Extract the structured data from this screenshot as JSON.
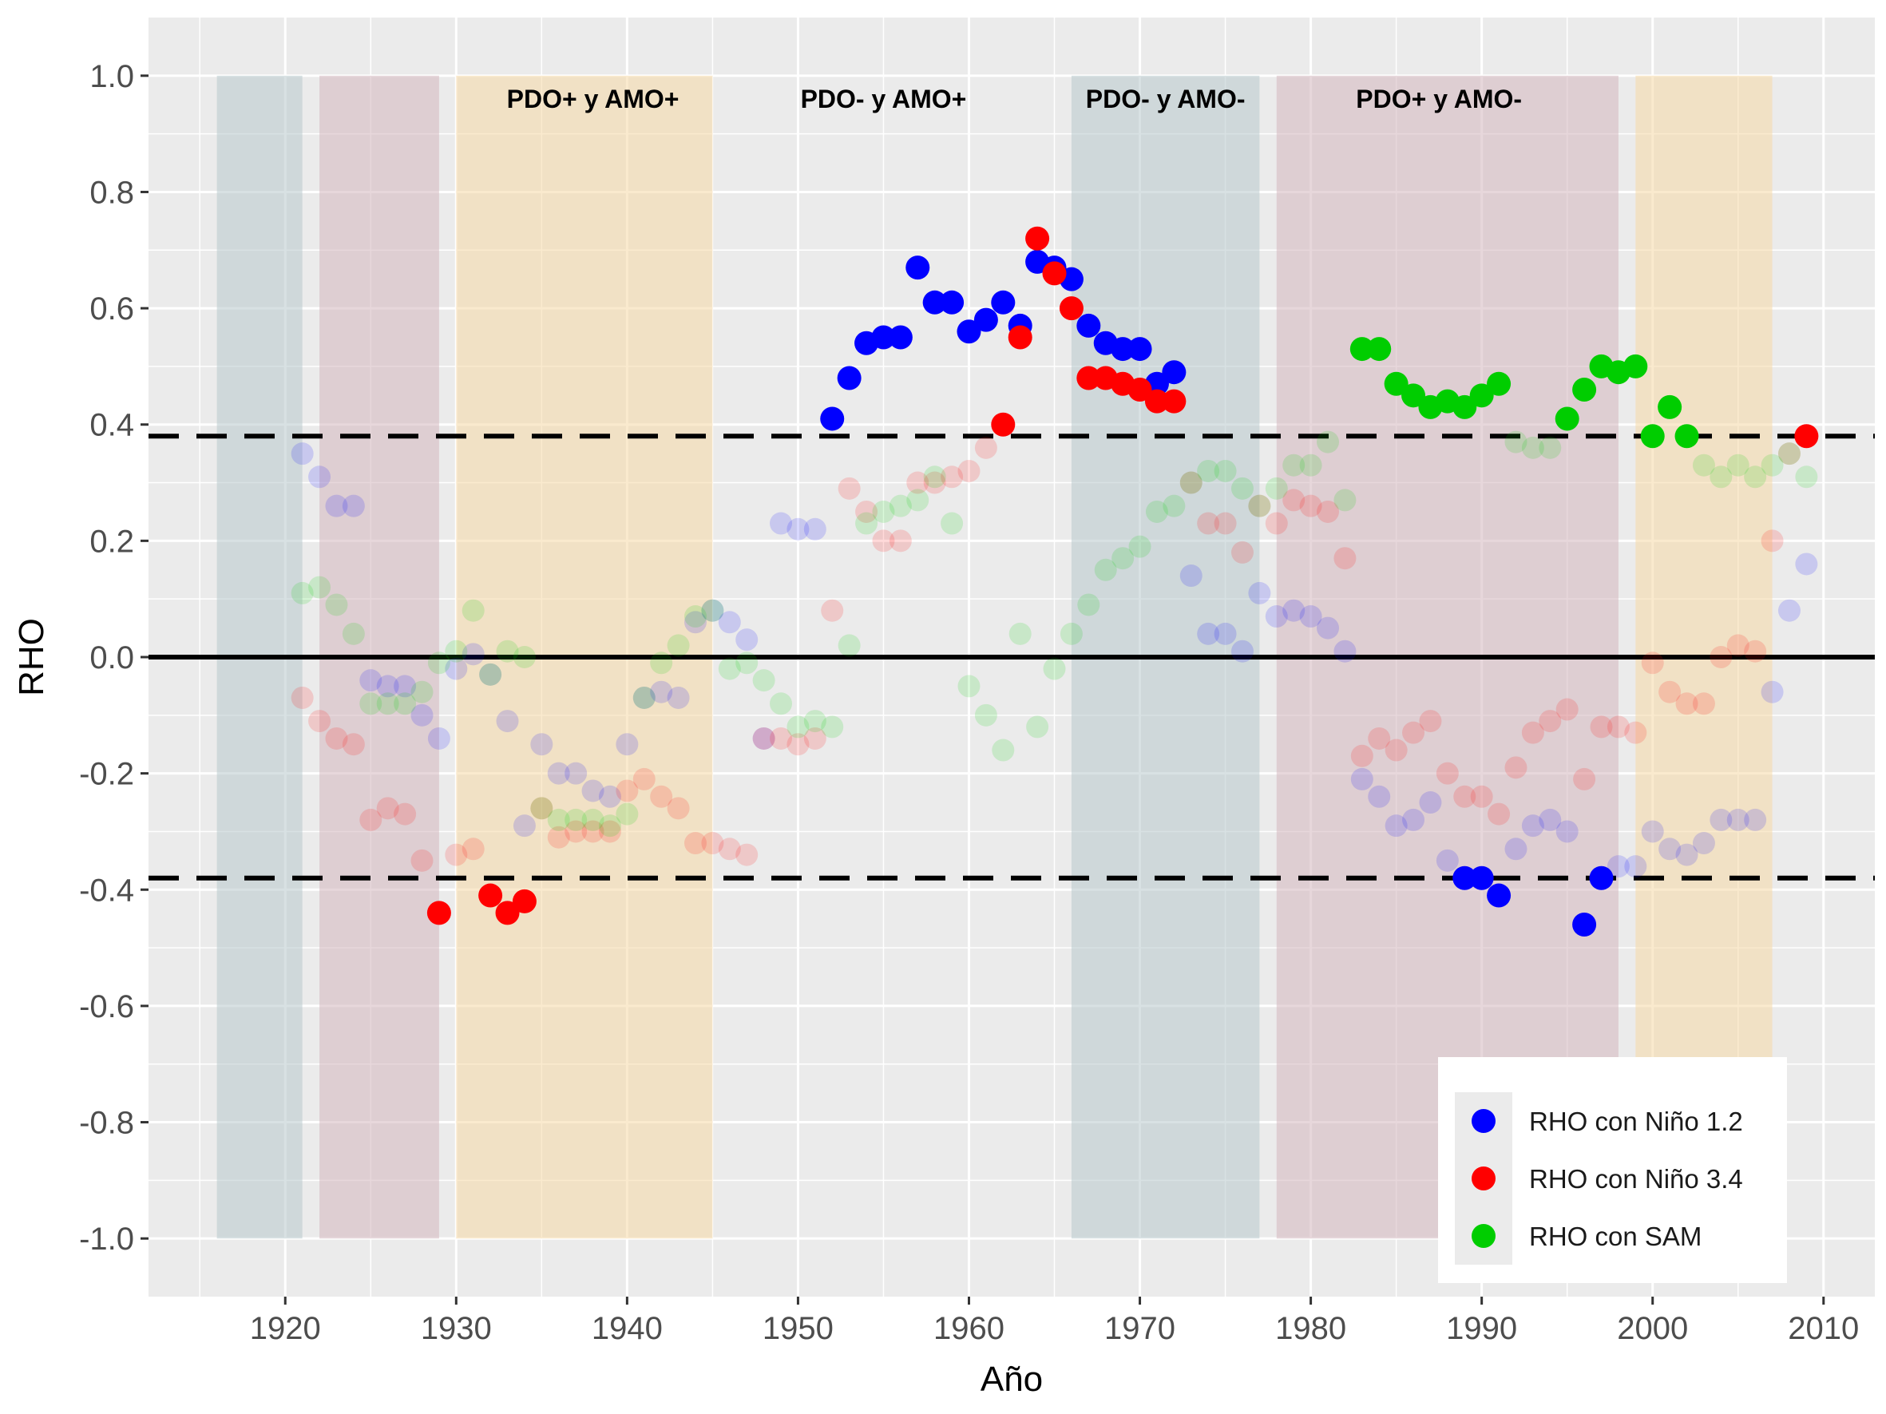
{
  "chart_data": {
    "type": "scatter",
    "xlabel": "Año",
    "ylabel": "RHO",
    "xlim": [
      1912,
      2013
    ],
    "ylim": [
      -1.1,
      1.1
    ],
    "x_ticks": [
      1920,
      1930,
      1940,
      1950,
      1960,
      1970,
      1980,
      1990,
      2000,
      2010
    ],
    "y_ticks": [
      1.0,
      0.8,
      0.6,
      0.4,
      0.2,
      0.0,
      -0.2,
      -0.4,
      -0.6,
      -0.8,
      -1.0
    ],
    "y_tick_labels": [
      "1.0",
      "0.8",
      "0.6",
      "0.4",
      "0.2",
      "0.0",
      "-0.2",
      "-0.4",
      "-0.6",
      "-0.8",
      "-1.0"
    ],
    "grid": true,
    "significance_threshold": 0.38,
    "reference_lines": [
      {
        "y": 0.0,
        "style": "solid"
      },
      {
        "y": 0.38,
        "style": "dashed"
      },
      {
        "y": -0.38,
        "style": "dashed"
      }
    ],
    "phase_bands": [
      {
        "start": 1916,
        "end": 1921,
        "color": "#b8c9cc"
      },
      {
        "start": 1922,
        "end": 1929,
        "color": "#d4b7bd"
      },
      {
        "start": 1930,
        "end": 1945,
        "color": "#f5d9a6"
      },
      {
        "start": 1966,
        "end": 1977,
        "color": "#b8c9cc"
      },
      {
        "start": 1978,
        "end": 1998,
        "color": "#d4b7bd"
      },
      {
        "start": 1999,
        "end": 2007,
        "color": "#f5d9a6"
      }
    ],
    "phase_labels": [
      {
        "text": "PDO+ y AMO+",
        "x": 1938
      },
      {
        "text": "PDO- y AMO+",
        "x": 1955
      },
      {
        "text": "PDO- y AMO-",
        "x": 1971.5
      },
      {
        "text": "PDO+ y AMO-",
        "x": 1987.5
      }
    ],
    "legend": {
      "position": "bottom-right",
      "entries": [
        {
          "label": "RHO con Niño 1.2",
          "color": "#0000ff"
        },
        {
          "label": "RHO con Niño 3.4",
          "color": "#ff0000"
        },
        {
          "label": "RHO con SAM",
          "color": "#00cd00"
        }
      ]
    },
    "series": [
      {
        "name": "RHO con Niño 1.2",
        "color": "#0000ff",
        "x": [
          1921,
          1922,
          1923,
          1924,
          1925,
          1926,
          1927,
          1928,
          1929,
          1930,
          1931,
          1932,
          1933,
          1934,
          1935,
          1936,
          1937,
          1938,
          1939,
          1940,
          1941,
          1942,
          1943,
          1944,
          1945,
          1946,
          1947,
          1948,
          1949,
          1950,
          1951,
          1952,
          1953,
          1954,
          1955,
          1956,
          1957,
          1958,
          1959,
          1960,
          1961,
          1962,
          1963,
          1964,
          1965,
          1966,
          1967,
          1968,
          1969,
          1970,
          1971,
          1972,
          1973,
          1974,
          1975,
          1976,
          1977,
          1978,
          1979,
          1980,
          1981,
          1982,
          1983,
          1984,
          1985,
          1986,
          1987,
          1988,
          1989,
          1990,
          1991,
          1992,
          1993,
          1994,
          1995,
          1996,
          1997,
          1998,
          1999,
          2000,
          2001,
          2002,
          2003,
          2004,
          2005,
          2006,
          2007,
          2008,
          2009
        ],
        "y": [
          0.35,
          0.31,
          0.26,
          0.26,
          -0.04,
          -0.05,
          -0.05,
          -0.1,
          -0.14,
          -0.02,
          0.005,
          -0.03,
          -0.11,
          -0.29,
          -0.15,
          -0.2,
          -0.2,
          -0.23,
          -0.24,
          -0.15,
          -0.07,
          -0.06,
          -0.07,
          0.06,
          0.08,
          0.06,
          0.03,
          -0.14,
          0.23,
          0.22,
          0.22,
          0.41,
          0.48,
          0.54,
          0.55,
          0.55,
          0.67,
          0.61,
          0.61,
          0.56,
          0.58,
          0.61,
          0.57,
          0.68,
          0.67,
          0.65,
          0.57,
          0.54,
          0.53,
          0.53,
          0.47,
          0.49,
          0.14,
          0.04,
          0.04,
          0.01,
          0.11,
          0.07,
          0.08,
          0.07,
          0.05,
          0.01,
          -0.21,
          -0.24,
          -0.29,
          -0.28,
          -0.25,
          -0.35,
          -0.38,
          -0.38,
          -0.41,
          -0.33,
          -0.29,
          -0.28,
          -0.3,
          -0.46,
          -0.38,
          -0.36,
          -0.36,
          -0.3,
          -0.33,
          -0.34,
          -0.32,
          -0.28,
          -0.28,
          -0.28,
          -0.06,
          0.08,
          0.16
        ]
      },
      {
        "name": "RHO con Niño 3.4",
        "color": "#ff0000",
        "x": [
          1921,
          1922,
          1923,
          1924,
          1925,
          1926,
          1927,
          1928,
          1929,
          1930,
          1931,
          1932,
          1933,
          1934,
          1935,
          1936,
          1937,
          1938,
          1939,
          1940,
          1941,
          1942,
          1943,
          1944,
          1945,
          1946,
          1947,
          1948,
          1949,
          1950,
          1951,
          1952,
          1953,
          1954,
          1955,
          1956,
          1957,
          1958,
          1959,
          1960,
          1961,
          1962,
          1963,
          1964,
          1965,
          1966,
          1967,
          1968,
          1969,
          1970,
          1971,
          1972,
          1973,
          1974,
          1975,
          1976,
          1977,
          1978,
          1979,
          1980,
          1981,
          1982,
          1983,
          1984,
          1985,
          1986,
          1987,
          1988,
          1989,
          1990,
          1991,
          1992,
          1993,
          1994,
          1995,
          1996,
          1997,
          1998,
          1999,
          2000,
          2001,
          2002,
          2003,
          2004,
          2005,
          2006,
          2007,
          2008,
          2009
        ],
        "y": [
          -0.07,
          -0.11,
          -0.14,
          -0.15,
          -0.28,
          -0.26,
          -0.27,
          -0.35,
          -0.44,
          -0.34,
          -0.33,
          -0.41,
          -0.44,
          -0.42,
          -0.26,
          -0.31,
          -0.3,
          -0.3,
          -0.3,
          -0.23,
          -0.21,
          -0.24,
          -0.26,
          -0.32,
          -0.32,
          -0.33,
          -0.34,
          -0.14,
          -0.14,
          -0.15,
          -0.14,
          0.08,
          0.29,
          0.25,
          0.2,
          0.2,
          0.3,
          0.3,
          0.31,
          0.32,
          0.36,
          0.4,
          0.55,
          0.72,
          0.66,
          0.6,
          0.48,
          0.48,
          0.47,
          0.46,
          0.44,
          0.44,
          0.3,
          0.23,
          0.23,
          0.18,
          0.26,
          0.23,
          0.27,
          0.26,
          0.25,
          0.17,
          -0.17,
          -0.14,
          -0.16,
          -0.13,
          -0.11,
          -0.2,
          -0.24,
          -0.24,
          -0.27,
          -0.19,
          -0.13,
          -0.11,
          -0.09,
          -0.21,
          -0.12,
          -0.12,
          -0.13,
          -0.01,
          -0.06,
          -0.08,
          -0.08,
          0.0,
          0.02,
          0.01,
          0.2,
          0.35,
          0.38
        ]
      },
      {
        "name": "RHO con SAM",
        "color": "#00cd00",
        "x": [
          1921,
          1922,
          1923,
          1924,
          1925,
          1926,
          1927,
          1928,
          1929,
          1930,
          1931,
          1932,
          1933,
          1934,
          1935,
          1936,
          1937,
          1938,
          1939,
          1940,
          1941,
          1942,
          1943,
          1944,
          1945,
          1946,
          1947,
          1948,
          1949,
          1950,
          1951,
          1952,
          1953,
          1954,
          1955,
          1956,
          1957,
          1958,
          1959,
          1960,
          1961,
          1962,
          1963,
          1964,
          1965,
          1966,
          1967,
          1968,
          1969,
          1970,
          1971,
          1972,
          1973,
          1974,
          1975,
          1976,
          1977,
          1978,
          1979,
          1980,
          1981,
          1982,
          1983,
          1984,
          1985,
          1986,
          1987,
          1988,
          1989,
          1990,
          1991,
          1992,
          1993,
          1994,
          1995,
          1996,
          1997,
          1998,
          1999,
          2000,
          2001,
          2002,
          2003,
          2004,
          2005,
          2006,
          2007,
          2008,
          2009
        ],
        "y": [
          0.11,
          0.12,
          0.09,
          0.04,
          -0.08,
          -0.08,
          -0.08,
          -0.06,
          -0.01,
          0.01,
          0.08,
          -0.03,
          0.01,
          0.0,
          -0.26,
          -0.28,
          -0.28,
          -0.28,
          -0.29,
          -0.27,
          -0.07,
          -0.01,
          0.02,
          0.07,
          0.08,
          -0.02,
          -0.01,
          -0.04,
          -0.08,
          -0.12,
          -0.11,
          -0.12,
          0.02,
          0.23,
          0.25,
          0.26,
          0.27,
          0.31,
          0.23,
          -0.05,
          -0.1,
          -0.16,
          0.04,
          -0.12,
          -0.02,
          0.04,
          0.09,
          0.15,
          0.17,
          0.19,
          0.25,
          0.26,
          0.3,
          0.32,
          0.32,
          0.29,
          0.26,
          0.29,
          0.33,
          0.33,
          0.37,
          0.27,
          0.53,
          0.53,
          0.47,
          0.45,
          0.43,
          0.44,
          0.43,
          0.45,
          0.47,
          0.37,
          0.36,
          0.36,
          0.41,
          0.46,
          0.5,
          0.49,
          0.5,
          0.38,
          0.43,
          0.38,
          0.33,
          0.31,
          0.33,
          0.31,
          0.33,
          0.35,
          0.31
        ]
      }
    ]
  }
}
